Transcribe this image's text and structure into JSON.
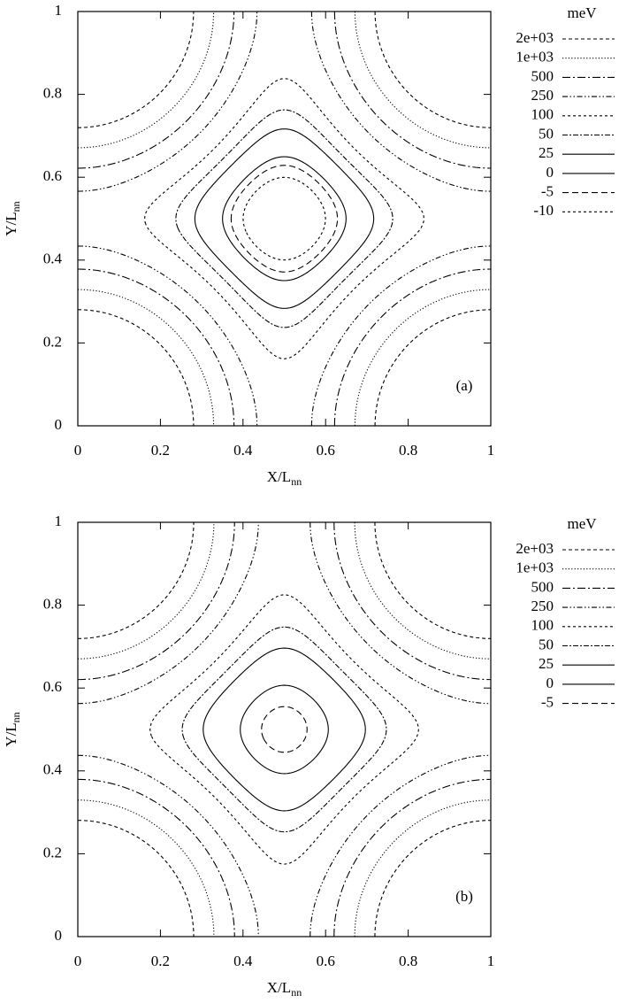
{
  "chart_data": [
    {
      "type": "contour",
      "panel_label": "(a)",
      "xlabel": "X/L",
      "xlabel_sub": "nn",
      "ylabel": "Y/L",
      "ylabel_sub": "nn",
      "xlim": [
        0,
        1
      ],
      "ylim": [
        0,
        1
      ],
      "xticks": [
        0,
        0.2,
        0.4,
        0.6,
        0.8,
        1
      ],
      "yticks": [
        0,
        0.2,
        0.4,
        0.6,
        0.8,
        1
      ],
      "legend_title": "meV",
      "legend_position": "outside-right",
      "color": "#000000",
      "levels": [
        {
          "value": 2000,
          "label": "2e+03"
        },
        {
          "value": 1000,
          "label": "1e+03"
        },
        500,
        250,
        100,
        50,
        25,
        0,
        -5,
        -10
      ],
      "line_styles": [
        "dashed",
        "dotted",
        "dash-dot",
        "dash-dot-dot",
        "dashed-fine",
        "dash-dot-short",
        "solid",
        "solid",
        "long-dashed",
        "dashed-fine"
      ]
    },
    {
      "type": "contour",
      "panel_label": "(b)",
      "xlabel": "X/L",
      "xlabel_sub": "nn",
      "ylabel": "Y/L",
      "ylabel_sub": "nn",
      "xlim": [
        0,
        1
      ],
      "ylim": [
        0,
        1
      ],
      "xticks": [
        0,
        0.2,
        0.4,
        0.6,
        0.8,
        1
      ],
      "yticks": [
        0,
        0.2,
        0.4,
        0.6,
        0.8,
        1
      ],
      "legend_title": "meV",
      "legend_position": "outside-right",
      "color": "#000000",
      "levels": [
        {
          "value": 2000,
          "label": "2e+03"
        },
        {
          "value": 1000,
          "label": "1e+03"
        },
        500,
        250,
        100,
        50,
        25,
        0,
        -5
      ],
      "line_styles": [
        "dashed",
        "dotted",
        "dash-dot",
        "dash-dot-dot",
        "dashed-fine",
        "dash-dot-short",
        "solid",
        "solid",
        "long-dashed"
      ]
    }
  ]
}
